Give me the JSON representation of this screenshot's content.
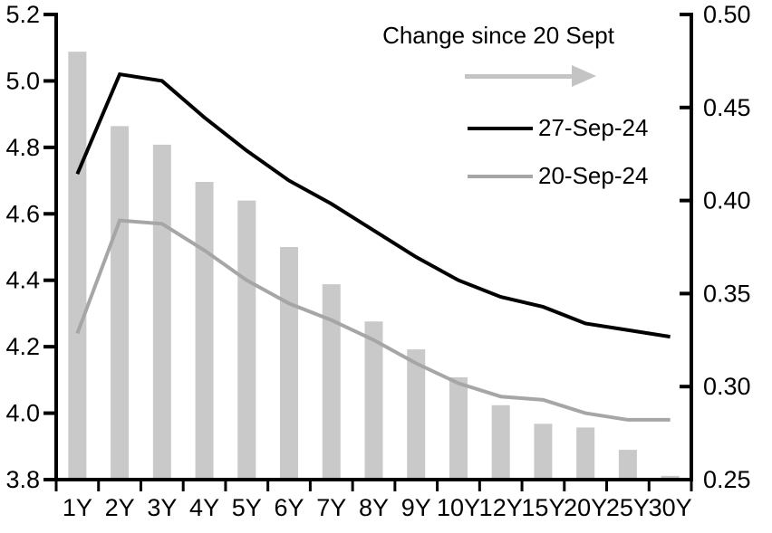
{
  "chart_data": {
    "type": "combo",
    "title": "",
    "categories": [
      "1Y",
      "2Y",
      "3Y",
      "4Y",
      "5Y",
      "6Y",
      "7Y",
      "8Y",
      "9Y",
      "10Y",
      "12Y",
      "15Y",
      "20Y",
      "25Y",
      "30Y"
    ],
    "series": [
      {
        "name": "Change since 20 Sept",
        "type": "bar",
        "axis": "right",
        "color": "#c9c9c9",
        "values": [
          0.48,
          0.44,
          0.43,
          0.41,
          0.4,
          0.375,
          0.355,
          0.335,
          0.32,
          0.305,
          0.29,
          0.28,
          0.278,
          0.266,
          0.252
        ]
      },
      {
        "name": "27-Sep-24",
        "type": "line",
        "axis": "left",
        "color": "#000000",
        "values": [
          4.72,
          5.02,
          5.0,
          4.89,
          4.79,
          4.7,
          4.63,
          4.55,
          4.47,
          4.4,
          4.35,
          4.32,
          4.27,
          4.25,
          4.23
        ]
      },
      {
        "name": "20-Sep-24",
        "type": "line",
        "axis": "left",
        "color": "#a6a6a6",
        "values": [
          4.24,
          4.58,
          4.57,
          4.49,
          4.4,
          4.33,
          4.28,
          4.22,
          4.15,
          4.09,
          4.05,
          4.04,
          4.0,
          3.98,
          3.98
        ]
      }
    ],
    "axes": {
      "left": {
        "min": 3.8,
        "max": 5.2,
        "tick_labels": [
          "5.2",
          "5.0",
          "4.8",
          "4.6",
          "4.4",
          "4.2",
          "4.0",
          "3.8"
        ]
      },
      "right": {
        "min": 0.25,
        "max": 0.5,
        "tick_labels": [
          "0.50",
          "0.45",
          "0.40",
          "0.35",
          "0.30",
          "0.25"
        ]
      }
    },
    "grid": false,
    "legend": {
      "position": "top-right",
      "arrow_color": "#c4c4c4"
    }
  }
}
